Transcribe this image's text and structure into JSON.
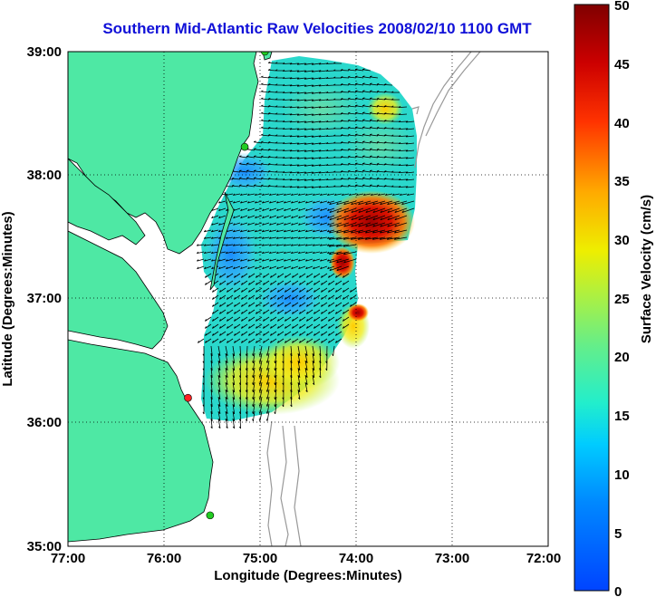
{
  "title": "Southern Mid-Atlantic Raw Velocities 2008/02/10 1100 GMT",
  "x_axis": {
    "label": "Longitude (Degrees:Minutes)",
    "ticks": [
      "77:00",
      "76:00",
      "75:00",
      "74:00",
      "73:00",
      "72:00"
    ]
  },
  "y_axis": {
    "label": "Latitude (Degrees:Minutes)",
    "ticks": [
      "39:00",
      "38:00",
      "37:00",
      "36:00",
      "35:00"
    ]
  },
  "colorbar": {
    "label": "Surface Velocity (cm/s)",
    "ticks": [
      "0",
      "5",
      "10",
      "15",
      "20",
      "25",
      "30",
      "35",
      "40",
      "45",
      "50"
    ],
    "min": 0,
    "max": 50,
    "colormap": "jet"
  },
  "map": {
    "lon_range": [
      -77,
      -72
    ],
    "lat_range": [
      35,
      39
    ],
    "land_color": "#4ee8a4",
    "water_color": "#ffffff",
    "grid": "dotted",
    "stations": [
      {
        "lon": -74.95,
        "lat": 39.0,
        "color": "#22cc22"
      },
      {
        "lon": -75.16,
        "lat": 38.23,
        "color": "#22cc22"
      },
      {
        "lon": -75.75,
        "lat": 36.2,
        "color": "#ff2222"
      },
      {
        "lon": -75.52,
        "lat": 35.25,
        "color": "#22cc22"
      }
    ]
  }
}
